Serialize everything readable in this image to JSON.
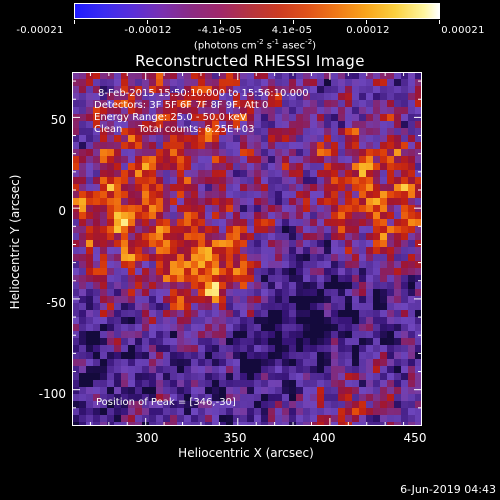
{
  "colorbar": {
    "labels": [
      "-0.00021",
      "-0.00012",
      "-4.1e-05",
      "4.1e-05",
      "0.00012",
      "0.00021"
    ],
    "units_main": "(photons cm",
    "units_exp1": "-2",
    "units_mid": " s",
    "units_exp2": "-1",
    "units_tail": " asec",
    "units_exp3": "-2",
    "units_close": ")"
  },
  "title": "Reconstructed RHESSI Image",
  "info": {
    "time_range": "8-Feb-2015 15:50:10.000 to 15:56:10.000",
    "detectors": "Detectors: 3F 5F 6F 7F 8F 9F, Att 0",
    "energy": "Energy Range: 25.0 - 50.0 keV",
    "clean": "Clean     Total counts: 6.25E+03",
    "peak": "Position of Peak = [346,-30]"
  },
  "axes": {
    "xlabel": "Heliocentric X (arcsec)",
    "ylabel": "Heliocentric Y (arcsec)",
    "xticks": [
      "300",
      "350",
      "400",
      "450"
    ],
    "yticks": [
      "50",
      "0",
      "-50",
      "-100"
    ],
    "xrange": [
      260,
      450
    ],
    "yrange": [
      -120,
      75
    ]
  },
  "timestamp": "6-Jun-2019 04:43"
}
